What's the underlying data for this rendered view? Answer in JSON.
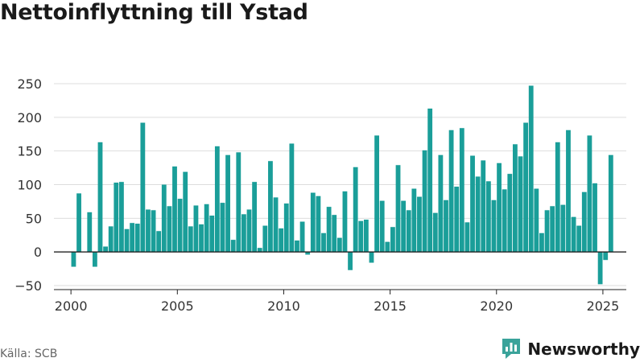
{
  "title": "Nettoinflyttning till Ystad",
  "source": "Källa: SCB",
  "brand": {
    "name": "Newsworthy",
    "icon": "newsworthy-logo-icon",
    "color": "#3aa39a"
  },
  "colors": {
    "bar": "#1a9e99",
    "grid": "#dddddd",
    "zero_line": "#222222",
    "text": "#333333"
  },
  "chart_data": {
    "type": "bar",
    "title": "Nettoinflyttning till Ystad",
    "xlabel": "",
    "ylabel": "",
    "xlim": [
      1999.2,
      2026.1
    ],
    "ylim": [
      -50,
      250
    ],
    "yticks": [
      -50,
      0,
      50,
      100,
      150,
      200,
      250
    ],
    "xticks": [
      2000,
      2005,
      2010,
      2015,
      2020,
      2025
    ],
    "grid": true,
    "legend": "none",
    "bar_width": 0.22,
    "x": [
      2000.125,
      2000.375,
      2000.625,
      2000.875,
      2001.125,
      2001.375,
      2001.625,
      2001.875,
      2002.125,
      2002.375,
      2002.625,
      2002.875,
      2003.125,
      2003.375,
      2003.625,
      2003.875,
      2004.125,
      2004.375,
      2004.625,
      2004.875,
      2005.125,
      2005.375,
      2005.625,
      2005.875,
      2006.125,
      2006.375,
      2006.625,
      2006.875,
      2007.125,
      2007.375,
      2007.625,
      2007.875,
      2008.125,
      2008.375,
      2008.625,
      2008.875,
      2009.125,
      2009.375,
      2009.625,
      2009.875,
      2010.125,
      2010.375,
      2010.625,
      2010.875,
      2011.125,
      2011.375,
      2011.625,
      2011.875,
      2012.125,
      2012.375,
      2012.625,
      2012.875,
      2013.125,
      2013.375,
      2013.625,
      2013.875,
      2014.125,
      2014.375,
      2014.625,
      2014.875,
      2015.125,
      2015.375,
      2015.625,
      2015.875,
      2016.125,
      2016.375,
      2016.625,
      2016.875,
      2017.125,
      2017.375,
      2017.625,
      2017.875,
      2018.125,
      2018.375,
      2018.625,
      2018.875,
      2019.125,
      2019.375,
      2019.625,
      2019.875,
      2020.125,
      2020.375,
      2020.625,
      2020.875,
      2021.125,
      2021.375,
      2021.625,
      2021.875,
      2022.125,
      2022.375,
      2022.625,
      2022.875,
      2023.125,
      2023.375,
      2023.625,
      2023.875,
      2024.125,
      2024.375,
      2024.625,
      2024.875,
      2025.125,
      2025.375
    ],
    "values": [
      -22,
      87,
      0,
      59,
      -22,
      163,
      8,
      38,
      103,
      104,
      34,
      43,
      42,
      192,
      63,
      62,
      31,
      100,
      68,
      127,
      79,
      119,
      38,
      69,
      41,
      71,
      54,
      157,
      73,
      144,
      18,
      148,
      56,
      63,
      104,
      6,
      39,
      135,
      81,
      35,
      72,
      161,
      17,
      45,
      -4,
      88,
      83,
      28,
      67,
      55,
      21,
      90,
      -27,
      126,
      46,
      48,
      -16,
      173,
      76,
      15,
      37,
      129,
      76,
      62,
      94,
      82,
      151,
      213,
      58,
      144,
      77,
      181,
      97,
      184,
      44,
      143,
      112,
      136,
      105,
      77,
      132,
      93,
      116,
      160,
      142,
      192,
      247,
      94,
      28,
      62,
      68,
      163,
      70,
      181,
      52,
      39,
      89,
      173,
      102,
      -48,
      -12,
      144
    ]
  }
}
